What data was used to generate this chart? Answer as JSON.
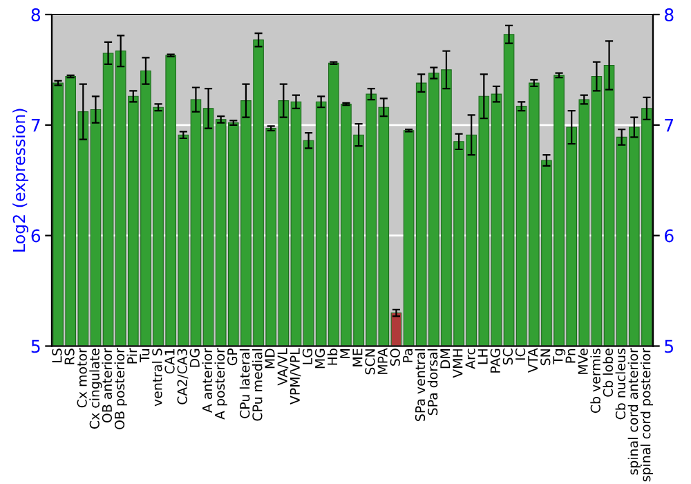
{
  "chart_data": {
    "type": "bar",
    "ylabel": "Log2 (expression)",
    "categories": [
      "LS",
      "RS",
      "Cx motor",
      "Cx cingulate",
      "OB anterior",
      "OB posterior",
      "Pir",
      "Tu",
      "ventral S",
      "CA1",
      "CA2/CA3",
      "DG",
      "A anterior",
      "A posterior",
      "GP",
      "CPu lateral",
      "CPu medial",
      "MD",
      "VA/VL",
      "VPM/VPL",
      "LG",
      "MG",
      "Hb",
      "M",
      "ME",
      "SCN",
      "MPA",
      "SO",
      "Pa",
      "SPa ventral",
      "SPa dorsal",
      "DM",
      "VMH",
      "Arc",
      "LH",
      "PAG",
      "SC",
      "IC",
      "VTA",
      "SN",
      "Tg",
      "Pn",
      "MVe",
      "Cb vermis",
      "Cb lobe",
      "Cb nucleus",
      "spinal cord anterior",
      "spinal cord posterior"
    ],
    "values": [
      7.38,
      7.44,
      7.12,
      7.14,
      7.65,
      7.67,
      7.26,
      7.49,
      7.16,
      7.63,
      6.91,
      7.23,
      7.15,
      7.05,
      7.02,
      7.22,
      7.77,
      6.97,
      7.22,
      7.21,
      6.86,
      7.21,
      7.56,
      7.19,
      6.91,
      7.28,
      7.16,
      5.3,
      6.95,
      7.38,
      7.47,
      7.5,
      6.85,
      6.91,
      7.26,
      7.28,
      7.82,
      7.17,
      7.38,
      6.68,
      7.45,
      6.98,
      7.23,
      7.44,
      7.54,
      6.89,
      6.98,
      7.15
    ],
    "errors": [
      0.02,
      0.01,
      0.25,
      0.12,
      0.1,
      0.14,
      0.05,
      0.12,
      0.03,
      0.01,
      0.03,
      0.11,
      0.18,
      0.03,
      0.02,
      0.15,
      0.06,
      0.02,
      0.15,
      0.06,
      0.07,
      0.05,
      0.01,
      0.01,
      0.1,
      0.05,
      0.08,
      0.03,
      0.01,
      0.08,
      0.05,
      0.17,
      0.07,
      0.18,
      0.2,
      0.07,
      0.08,
      0.04,
      0.03,
      0.05,
      0.02,
      0.15,
      0.04,
      0.13,
      0.22,
      0.07,
      0.09,
      0.1
    ],
    "colors": [
      "#33a033",
      "#33a033",
      "#33a033",
      "#33a033",
      "#33a033",
      "#33a033",
      "#33a033",
      "#33a033",
      "#33a033",
      "#33a033",
      "#33a033",
      "#33a033",
      "#33a033",
      "#33a033",
      "#33a033",
      "#33a033",
      "#33a033",
      "#33a033",
      "#33a033",
      "#33a033",
      "#33a033",
      "#33a033",
      "#33a033",
      "#33a033",
      "#33a033",
      "#33a033",
      "#33a033",
      "#b03a3a",
      "#33a033",
      "#33a033",
      "#33a033",
      "#33a033",
      "#33a033",
      "#33a033",
      "#33a033",
      "#33a033",
      "#33a033",
      "#33a033",
      "#33a033",
      "#33a033",
      "#33a033",
      "#33a033",
      "#33a033",
      "#33a033",
      "#33a033",
      "#33a033",
      "#33a033",
      "#33a033"
    ],
    "ylim": [
      5,
      8
    ],
    "yticks": [
      5,
      6,
      7,
      8
    ],
    "y2lim": [
      5,
      8
    ],
    "y2ticks": [
      5,
      6,
      7,
      8
    ],
    "grid": "y"
  }
}
